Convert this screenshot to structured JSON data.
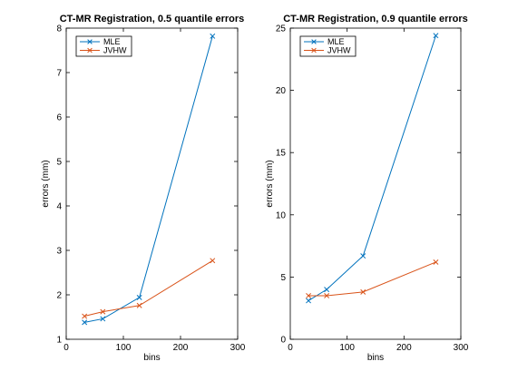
{
  "colors": {
    "mle": "#0072bd",
    "jvhw": "#d95319"
  },
  "chart_data": [
    {
      "type": "line",
      "title": "CT-MR Registration, 0.5 quantile errors",
      "xlabel": "bins",
      "ylabel": "errors (mm)",
      "xlim": [
        0,
        300
      ],
      "ylim": [
        1,
        8
      ],
      "xticks": [
        0,
        100,
        200,
        300
      ],
      "yticks": [
        1,
        2,
        3,
        4,
        5,
        6,
        7,
        8
      ],
      "legend_position": "top-left",
      "grid": false,
      "series": [
        {
          "name": "MLE",
          "color": "#0072bd",
          "marker": "x",
          "x": [
            32,
            64,
            128,
            256
          ],
          "y": [
            1.38,
            1.46,
            1.94,
            7.82
          ]
        },
        {
          "name": "JVHW",
          "color": "#d95319",
          "marker": "x",
          "x": [
            32,
            64,
            128,
            256
          ],
          "y": [
            1.52,
            1.62,
            1.76,
            2.77
          ]
        }
      ]
    },
    {
      "type": "line",
      "title": "CT-MR Registration, 0.9 quantile errors",
      "xlabel": "bins",
      "ylabel": "errors (mm)",
      "xlim": [
        0,
        300
      ],
      "ylim": [
        0,
        25
      ],
      "xticks": [
        0,
        100,
        200,
        300
      ],
      "yticks": [
        0,
        5,
        10,
        15,
        20,
        25
      ],
      "legend_position": "top-left",
      "grid": false,
      "series": [
        {
          "name": "MLE",
          "color": "#0072bd",
          "marker": "x",
          "x": [
            32,
            64,
            128,
            256
          ],
          "y": [
            3.1,
            4.0,
            6.7,
            24.4
          ]
        },
        {
          "name": "JVHW",
          "color": "#d95319",
          "marker": "x",
          "x": [
            32,
            64,
            128,
            256
          ],
          "y": [
            3.5,
            3.5,
            3.8,
            6.2
          ]
        }
      ]
    }
  ]
}
